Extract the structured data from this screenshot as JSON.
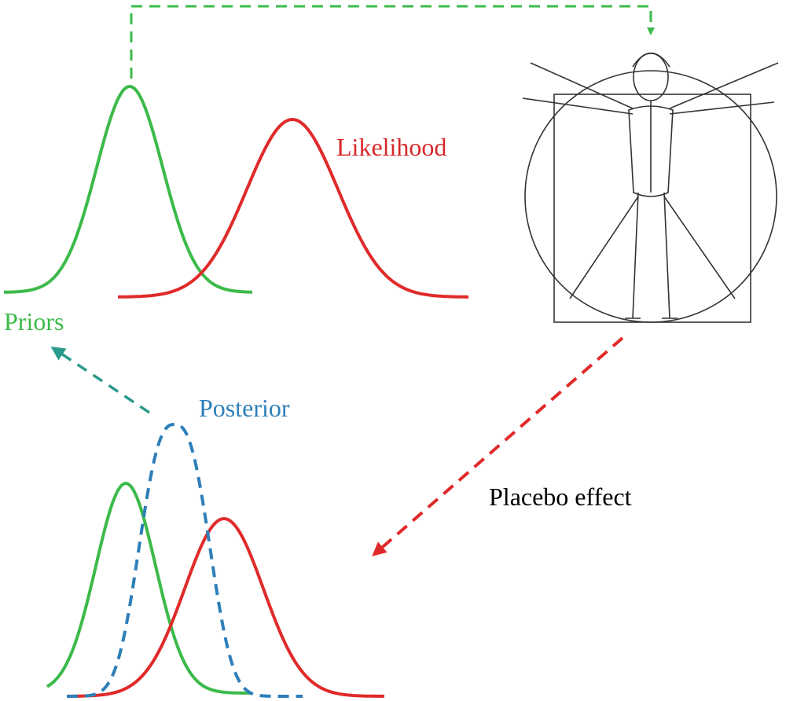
{
  "labels": {
    "likelihood": "Likelihood",
    "priors": "Priors",
    "posterior": "Posterior",
    "placebo": "Placebo effect"
  }
}
